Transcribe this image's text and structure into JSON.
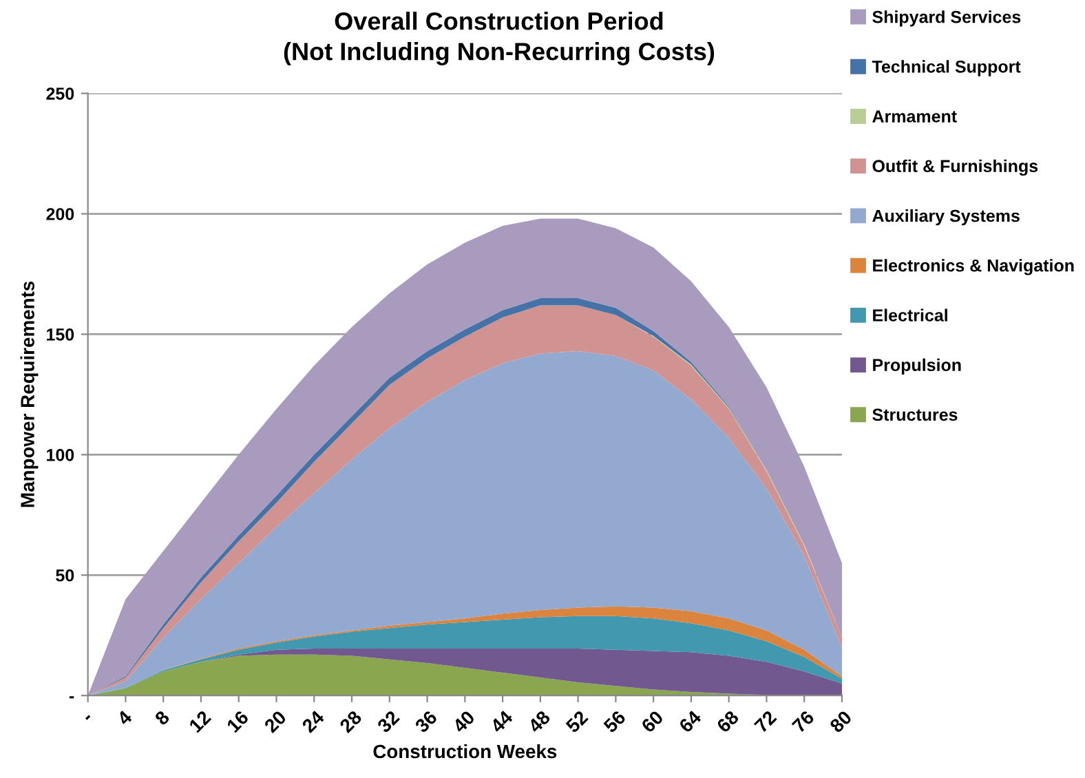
{
  "chart_data": {
    "type": "area",
    "stacked": true,
    "title": "Overall Construction Period\n(Not Including Non-Recurring Costs)",
    "xlabel": "Construction Weeks",
    "ylabel": "Manpower Requirements",
    "categories": [
      "-",
      "4",
      "8",
      "12",
      "16",
      "20",
      "24",
      "28",
      "32",
      "36",
      "40",
      "44",
      "48",
      "52",
      "56",
      "60",
      "64",
      "68",
      "72",
      "76",
      "80"
    ],
    "ylim": [
      0,
      250
    ],
    "yticks": [
      {
        "value": 0,
        "label": "-"
      },
      50,
      100,
      150,
      200,
      250
    ],
    "grid": "y",
    "legend": "right",
    "series": [
      {
        "name": "Structures",
        "color": "#8aa64f",
        "values": [
          0,
          3,
          10,
          14,
          16.5,
          17,
          17,
          16.5,
          15,
          13.5,
          11.5,
          9.5,
          7.5,
          5.5,
          4,
          2.5,
          1.5,
          0.8,
          0.3,
          0.1,
          0
        ]
      },
      {
        "name": "Propulsion",
        "color": "#71588f",
        "values": [
          0,
          0,
          0,
          0,
          0.5,
          2,
          2.5,
          3,
          4.5,
          6,
          8,
          10,
          12,
          14,
          15,
          16,
          16.5,
          15.7,
          13.7,
          9.9,
          5
        ]
      },
      {
        "name": "Electrical",
        "color": "#4198af",
        "values": [
          0,
          0.2,
          0.5,
          1,
          2,
          3,
          5,
          7,
          8.5,
          10,
          11,
          12,
          13,
          13.5,
          14,
          13.5,
          12,
          10.5,
          8.5,
          6,
          2
        ]
      },
      {
        "name": "Electronics & Navigation",
        "color": "#db843d",
        "values": [
          0,
          0.1,
          0.1,
          0.3,
          0.5,
          0.5,
          0.5,
          0.5,
          1,
          1,
          1.5,
          2.5,
          3,
          3.5,
          4,
          4.5,
          5,
          5,
          4.5,
          3,
          1
        ]
      },
      {
        "name": "Auxiliary Systems",
        "color": "#93a9cf",
        "values": [
          0,
          2.7,
          13.4,
          24.7,
          35.5,
          47.5,
          59,
          71,
          82,
          91.5,
          99,
          104,
          106.5,
          106.5,
          104,
          98.5,
          88,
          75,
          59,
          39,
          12
        ]
      },
      {
        "name": "Outfit & Furnishings",
        "color": "#d19392",
        "values": [
          0,
          1.5,
          4,
          7,
          9,
          10,
          13,
          15,
          18,
          18,
          18,
          19,
          20,
          19,
          17,
          14,
          14,
          12,
          7,
          4,
          4
        ]
      },
      {
        "name": "Armament",
        "color": "#b9cd96",
        "values": [
          null,
          null,
          null,
          null,
          null,
          null,
          null,
          null,
          null,
          null,
          null,
          null,
          null,
          null,
          null,
          0.3,
          0.5,
          0.5,
          0.5,
          0.5,
          null
        ]
      },
      {
        "name": "Technical Support",
        "color": "#4572a7",
        "values": [
          0,
          0.5,
          1.5,
          2,
          2.5,
          3,
          3,
          3,
          3,
          3,
          3,
          3,
          3,
          3,
          3,
          2,
          1,
          0.5,
          0,
          0,
          0
        ]
      },
      {
        "name": "Shipyard Services",
        "color": "#a99bbd",
        "values": [
          0,
          32,
          30.5,
          31,
          33.5,
          36,
          37,
          37,
          35,
          36,
          36,
          35,
          33,
          33,
          33,
          34.7,
          33.5,
          33,
          34.5,
          32.5,
          31
        ]
      }
    ]
  }
}
